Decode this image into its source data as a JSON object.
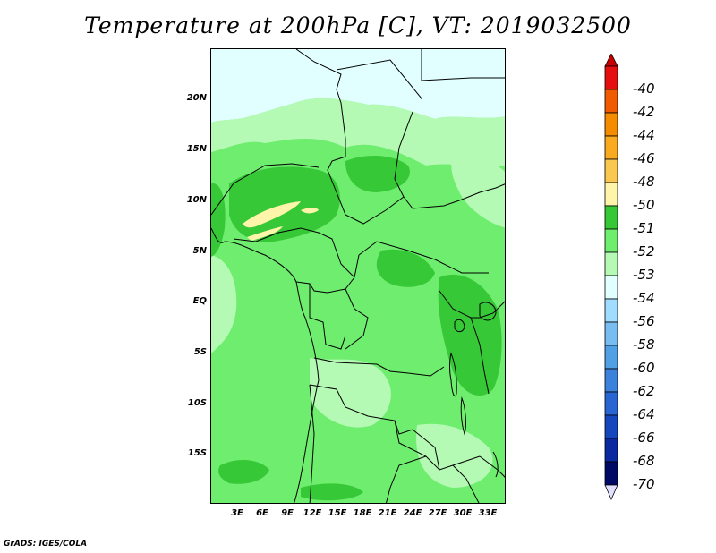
{
  "title": "Temperature at 200hPa [C], VT: 2019032500",
  "footer": "GrADS: IGES/COLA",
  "y_ticks": [
    "20N",
    "15N",
    "10N",
    "5N",
    "EQ",
    "5S",
    "10S",
    "15S"
  ],
  "x_ticks": [
    "3E",
    "6E",
    "9E",
    "12E",
    "15E",
    "18E",
    "21E",
    "24E",
    "27E",
    "30E",
    "33E"
  ],
  "colorbar": {
    "labels": [
      "-40",
      "-42",
      "-44",
      "-46",
      "-48",
      "-50",
      "-51",
      "-52",
      "-53",
      "-54",
      "-56",
      "-58",
      "-60",
      "-62",
      "-64",
      "-66",
      "-68",
      "-70"
    ],
    "colors": [
      "#e60f0f",
      "#f05a00",
      "#f58c00",
      "#faaa1e",
      "#fac850",
      "#fff5aa",
      "#37c837",
      "#6eed6e",
      "#b4fab4",
      "#e1ffff",
      "#a0dcff",
      "#78bcf0",
      "#50a0e6",
      "#3c82dc",
      "#2864d2",
      "#1446be",
      "#0a28a0",
      "#000a64"
    ],
    "top_arrow_color": "#c80000",
    "bottom_arrow_color": "#e1e1ff"
  },
  "map_colors": {
    "light_blue": "#e1ffff",
    "pale_green": "#b4fab4",
    "mid_green": "#6eed6e",
    "dark_green": "#37c837",
    "yellow": "#fff5aa"
  }
}
